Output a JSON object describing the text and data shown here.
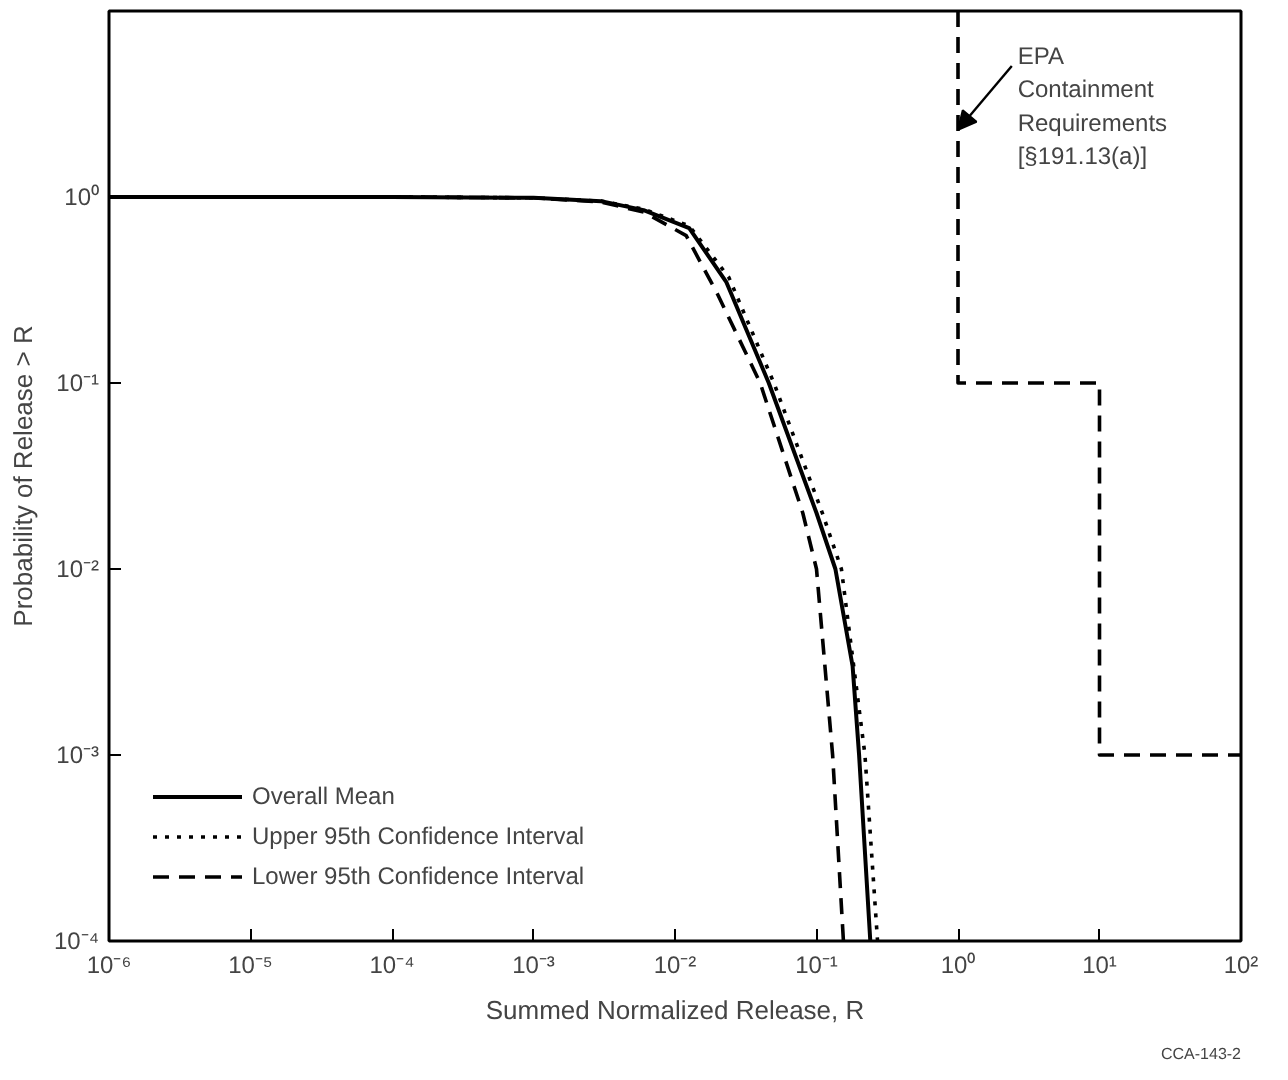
{
  "chart_data": {
    "type": "line",
    "xlabel": "Summed Normalized Release, R",
    "ylabel": "Probability of Release > R",
    "log": "xy",
    "grid": false,
    "legend": "bottom left",
    "marker": "none",
    "xlim": [
      1e-06,
      100
    ],
    "ylim": [
      0.0001,
      10
    ],
    "xticks": [
      {
        "value": 1e-06,
        "label": "10⁻⁶"
      },
      {
        "value": 1e-05,
        "label": "10⁻⁵"
      },
      {
        "value": 0.0001,
        "label": "10⁻⁴"
      },
      {
        "value": 0.001,
        "label": "10⁻³"
      },
      {
        "value": 0.01,
        "label": "10⁻²"
      },
      {
        "value": 0.1,
        "label": "10⁻¹"
      },
      {
        "value": 1,
        "label": "10⁰"
      },
      {
        "value": 10,
        "label": "10¹"
      },
      {
        "value": 100,
        "label": "10²"
      }
    ],
    "yticks": [
      {
        "value": 0.0001,
        "label": "10⁻⁴"
      },
      {
        "value": 0.001,
        "label": "10⁻³"
      },
      {
        "value": 0.01,
        "label": "10⁻²"
      },
      {
        "value": 0.1,
        "label": "10⁻¹"
      },
      {
        "value": 1,
        "label": "10⁰"
      }
    ],
    "series": [
      {
        "name": "Overall Mean",
        "color": "#000000",
        "line_style": "solid",
        "x": [
          1e-06,
          0.0001,
          0.001,
          0.003,
          0.006,
          0.0126,
          0.023,
          0.046,
          0.1,
          0.136,
          0.18,
          0.2,
          0.24
        ],
        "values": [
          1,
          1,
          0.99,
          0.95,
          0.85,
          0.68,
          0.35,
          0.1,
          0.02,
          0.01,
          0.003,
          0.001,
          0.0001
        ]
      },
      {
        "name": "Upper 95th Confidence Interval",
        "color": "#000000",
        "line_style": "dotted",
        "x": [
          1e-06,
          0.0001,
          0.001,
          0.003,
          0.006,
          0.0126,
          0.024,
          0.05,
          0.11,
          0.15,
          0.22,
          0.27
        ],
        "values": [
          1,
          1,
          0.99,
          0.95,
          0.86,
          0.7,
          0.37,
          0.1,
          0.02,
          0.01,
          0.001,
          0.0001
        ]
      },
      {
        "name": "Lower 95th Confidence Interval",
        "color": "#000000",
        "line_style": "dashed",
        "x": [
          1e-06,
          0.0001,
          0.001,
          0.003,
          0.006,
          0.012,
          0.02,
          0.04,
          0.08,
          0.1,
          0.13,
          0.155
        ],
        "values": [
          1,
          1,
          0.99,
          0.94,
          0.83,
          0.62,
          0.3,
          0.1,
          0.02,
          0.01,
          0.001,
          0.0001
        ]
      },
      {
        "color": "#000000",
        "line_style": "dashed",
        "x": [
          1,
          1,
          10,
          10,
          100
        ],
        "values": [
          10,
          0.1,
          0.1,
          0.001,
          0.001
        ]
      }
    ],
    "annotations": [
      {
        "text": "EPA\nContainment\nRequirements\n[§191.13(a)]",
        "x": 1,
        "y": 2.3
      },
      "CCA-143-2"
    ]
  }
}
